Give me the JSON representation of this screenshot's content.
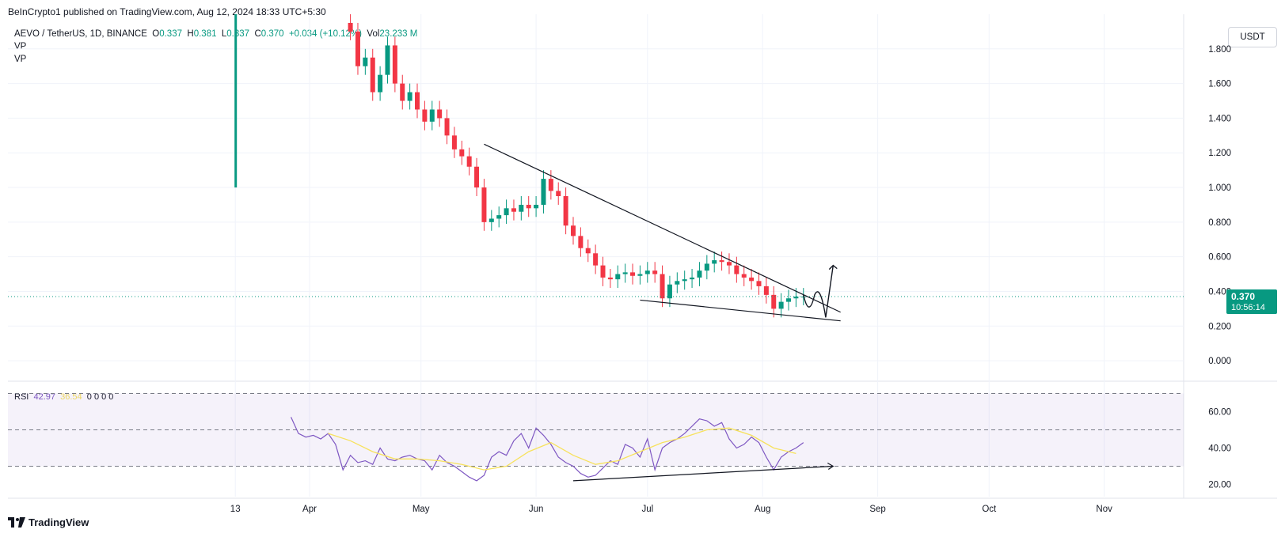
{
  "header": {
    "credit": "BeInCrypto1 published on TradingView.com, Aug 12, 2024 18:33 UTC+5:30"
  },
  "legend": {
    "symbol": "AEVO / TetherUS, 1D, BINANCE",
    "o_label": "O",
    "o_value": "0.337",
    "h_label": "H",
    "h_value": "0.381",
    "l_label": "L",
    "l_value": "0.337",
    "c_label": "C",
    "c_value": "0.370",
    "change": "+0.034 (+10.12%)",
    "vol_label": "Vol",
    "vol_value": "23.233 M",
    "indicators": [
      "VP",
      "VP"
    ]
  },
  "rsi_legend": {
    "label": "RSI",
    "rsi_value": "42.97",
    "ma_value": "36.54",
    "extra": "0  0  0  0"
  },
  "price_axis": {
    "currency": "USDT",
    "last_price": "0.370",
    "countdown": "10:56:14"
  },
  "footer": {
    "brand": "TradingView"
  },
  "colors": {
    "up": "#089981",
    "down": "#f23645",
    "rsi_line": "#7e57c2",
    "rsi_ma": "#f7e25d",
    "rsi_band": "#7e57c2",
    "trendline": "#131722"
  },
  "chart_data": [
    {
      "type": "candlestick",
      "title": "AEVO / TetherUS, 1D, BINANCE",
      "ylabel": "USDT",
      "ylim": [
        -0.1,
        2.0
      ],
      "y_ticks": [
        0.0,
        0.2,
        0.4,
        0.6,
        0.8,
        1.0,
        1.2,
        1.4,
        1.6,
        1.8
      ],
      "y_tick_labels": [
        "0.000",
        "0.200",
        "0.400",
        "0.600",
        "0.800",
        "1.000",
        "1.200",
        "1.400",
        "1.600",
        "1.800"
      ],
      "x_ticks": [
        {
          "label": "13",
          "day": -20
        },
        {
          "label": "Apr",
          "day": 0
        },
        {
          "label": "May",
          "day": 30
        },
        {
          "label": "Jun",
          "day": 61
        },
        {
          "label": "Jul",
          "day": 91
        },
        {
          "label": "Aug",
          "day": 122
        },
        {
          "label": "Sep",
          "day": 153
        },
        {
          "label": "Oct",
          "day": 183
        },
        {
          "label": "Nov",
          "day": 214
        }
      ],
      "closes": [
        {
          "day": 11,
          "close": 1.9
        },
        {
          "day": 13,
          "close": 1.7
        },
        {
          "day": 15,
          "close": 1.75
        },
        {
          "day": 17,
          "close": 1.55
        },
        {
          "day": 19,
          "close": 1.65
        },
        {
          "day": 21,
          "close": 1.82
        },
        {
          "day": 23,
          "close": 1.6
        },
        {
          "day": 25,
          "close": 1.5
        },
        {
          "day": 27,
          "close": 1.55
        },
        {
          "day": 29,
          "close": 1.45
        },
        {
          "day": 31,
          "close": 1.38
        },
        {
          "day": 33,
          "close": 1.45
        },
        {
          "day": 35,
          "close": 1.4
        },
        {
          "day": 37,
          "close": 1.3
        },
        {
          "day": 39,
          "close": 1.22
        },
        {
          "day": 41,
          "close": 1.18
        },
        {
          "day": 43,
          "close": 1.12
        },
        {
          "day": 45,
          "close": 1.0
        },
        {
          "day": 47,
          "close": 0.8
        },
        {
          "day": 49,
          "close": 0.82
        },
        {
          "day": 51,
          "close": 0.84
        },
        {
          "day": 53,
          "close": 0.88
        },
        {
          "day": 55,
          "close": 0.86
        },
        {
          "day": 57,
          "close": 0.9
        },
        {
          "day": 59,
          "close": 0.88
        },
        {
          "day": 61,
          "close": 0.9
        },
        {
          "day": 63,
          "close": 1.05
        },
        {
          "day": 65,
          "close": 0.98
        },
        {
          "day": 67,
          "close": 0.95
        },
        {
          "day": 69,
          "close": 0.78
        },
        {
          "day": 71,
          "close": 0.72
        },
        {
          "day": 73,
          "close": 0.65
        },
        {
          "day": 75,
          "close": 0.62
        },
        {
          "day": 77,
          "close": 0.55
        },
        {
          "day": 79,
          "close": 0.48
        },
        {
          "day": 81,
          "close": 0.47
        },
        {
          "day": 83,
          "close": 0.5
        },
        {
          "day": 85,
          "close": 0.51
        },
        {
          "day": 87,
          "close": 0.49
        },
        {
          "day": 89,
          "close": 0.5
        },
        {
          "day": 91,
          "close": 0.52
        },
        {
          "day": 93,
          "close": 0.5
        },
        {
          "day": 95,
          "close": 0.36
        },
        {
          "day": 97,
          "close": 0.44
        },
        {
          "day": 99,
          "close": 0.46
        },
        {
          "day": 101,
          "close": 0.47
        },
        {
          "day": 103,
          "close": 0.48
        },
        {
          "day": 105,
          "close": 0.52
        },
        {
          "day": 107,
          "close": 0.56
        },
        {
          "day": 109,
          "close": 0.58
        },
        {
          "day": 111,
          "close": 0.57
        },
        {
          "day": 113,
          "close": 0.55
        },
        {
          "day": 115,
          "close": 0.5
        },
        {
          "day": 117,
          "close": 0.48
        },
        {
          "day": 119,
          "close": 0.46
        },
        {
          "day": 121,
          "close": 0.43
        },
        {
          "day": 123,
          "close": 0.38
        },
        {
          "day": 125,
          "close": 0.3
        },
        {
          "day": 127,
          "close": 0.34
        },
        {
          "day": 129,
          "close": 0.36
        },
        {
          "day": 131,
          "close": 0.37
        },
        {
          "day": 133,
          "close": 0.37
        }
      ],
      "volume_profile_bar": {
        "day": -20,
        "from": 1.0,
        "to": 2.0
      },
      "last_price": 0.37
    },
    {
      "type": "line",
      "title": "RSI",
      "ylim": [
        15,
        75
      ],
      "y_ticks": [
        20,
        40,
        60
      ],
      "y_tick_labels": [
        "20.00",
        "40.00",
        "60.00"
      ],
      "bands": [
        30,
        50,
        70
      ],
      "series": [
        {
          "name": "RSI",
          "x": [
            -5,
            -3,
            -1,
            1,
            3,
            5,
            7,
            9,
            11,
            13,
            15,
            17,
            19,
            21,
            23,
            25,
            27,
            29,
            31,
            33,
            35,
            37,
            39,
            41,
            43,
            45,
            47,
            49,
            51,
            53,
            55,
            57,
            59,
            61,
            63,
            65,
            67,
            69,
            71,
            73,
            75,
            77,
            79,
            81,
            83,
            85,
            87,
            89,
            91,
            93,
            95,
            97,
            99,
            101,
            103,
            105,
            107,
            109,
            111,
            113,
            115,
            117,
            119,
            121,
            123,
            125,
            127,
            129,
            131,
            133
          ],
          "y": [
            57,
            48,
            46,
            47,
            45,
            48,
            42,
            28,
            36,
            32,
            33,
            31,
            40,
            34,
            33,
            35,
            36,
            34,
            33,
            28,
            36,
            32,
            30,
            27,
            24,
            22,
            25,
            35,
            38,
            36,
            44,
            48,
            40,
            51,
            47,
            42,
            35,
            32,
            30,
            26,
            24,
            25,
            29,
            33,
            31,
            42,
            40,
            35,
            45,
            28,
            40,
            43,
            45,
            48,
            52,
            56,
            55,
            52,
            54,
            45,
            40,
            42,
            46,
            43,
            35,
            28,
            35,
            38,
            40,
            43
          ]
        },
        {
          "name": "RSI-based MA",
          "x": [
            5,
            11,
            17,
            23,
            29,
            35,
            41,
            47,
            53,
            59,
            65,
            71,
            77,
            83,
            89,
            95,
            101,
            107,
            113,
            119,
            125,
            131
          ],
          "y": [
            48,
            44,
            38,
            34,
            34,
            33,
            31,
            28,
            30,
            38,
            43,
            36,
            31,
            33,
            38,
            43,
            46,
            50,
            51,
            47,
            40,
            37
          ]
        }
      ]
    }
  ]
}
